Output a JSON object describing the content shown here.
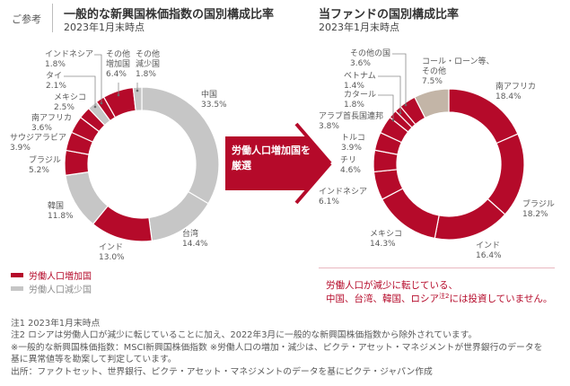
{
  "header": {
    "reference_label": "ご参考"
  },
  "arrow": {
    "line1": "労働人口増加国を",
    "line2": "厳選"
  },
  "legend": [
    {
      "label": "労働人口増加国",
      "color": "#b50a2a"
    },
    {
      "label": "労働人口減少国",
      "color": "#c6c6c6"
    }
  ],
  "message": {
    "line1": "労働人口が減少に転じている、",
    "line2_pre": "中国、台湾、韓国、ロシア",
    "line2_sup": "注2",
    "line2_post": "には投資していません。"
  },
  "notes": [
    "注1 2023年1月末時点",
    "注2 ロシアは労働人口が減少に転じていることに加え、2022年3月に一般的な新興国株価指数から除外されています。",
    "※一般的な新興国株価指数：MSCI新興国株価指数 ※労働人口の増加・減少は、ピクテ・アセット・マネジメントが世界銀行のデータを",
    "基に異常値等を勘案して判定しています。",
    "出所：ファクトセット、世界銀行、ピクテ・アセット・マネジメントのデータを基にピクテ・ジャパン作成"
  ],
  "chart_data": [
    {
      "type": "pie",
      "title": "一般的な新興国株価指数の国別構成比率",
      "subtitle": "2023年1月末時点",
      "unit": "%",
      "categories": [
        "中国",
        "台湾",
        "インド",
        "韓国",
        "ブラジル",
        "サウジアラビア",
        "南アフリカ",
        "メキシコ",
        "タイ",
        "インドネシア",
        "その他\n増加国",
        "その他\n減少国"
      ],
      "values": [
        33.5,
        14.4,
        13.0,
        11.8,
        5.2,
        3.9,
        3.6,
        2.5,
        2.1,
        1.8,
        6.4,
        1.8
      ],
      "value_labels": [
        "33.5%",
        "14.4%",
        "13.0%",
        "11.8%",
        "5.2%",
        "3.9%",
        "3.6%",
        "2.5%",
        "2.1%",
        "1.8%",
        "6.4%",
        "1.8%"
      ],
      "colors": [
        "#c6c6c6",
        "#c6c6c6",
        "#b50a2a",
        "#c6c6c6",
        "#b50a2a",
        "#b50a2a",
        "#b50a2a",
        "#b50a2a",
        "#c6c6c6",
        "#b50a2a",
        "#b50a2a",
        "#c6c6c6"
      ]
    },
    {
      "type": "pie",
      "title": "当ファンドの国別構成比率",
      "subtitle": "2023年1月末時点",
      "unit": "%",
      "categories": [
        "南アフリカ",
        "ブラジル",
        "インド",
        "メキシコ",
        "インドネシア",
        "チリ",
        "トルコ",
        "アラブ首長国連邦",
        "カタール",
        "ベトナム",
        "その他の国",
        "コール・ローン等、\nその他"
      ],
      "values": [
        18.4,
        18.2,
        16.4,
        14.3,
        6.1,
        4.6,
        3.9,
        3.8,
        1.8,
        1.4,
        3.6,
        7.5
      ],
      "value_labels": [
        "18.4%",
        "18.2%",
        "16.4%",
        "14.3%",
        "6.1%",
        "4.6%",
        "3.9%",
        "3.8%",
        "1.8%",
        "1.4%",
        "3.6%",
        "7.5%"
      ],
      "colors": [
        "#b50a2a",
        "#b50a2a",
        "#b50a2a",
        "#b50a2a",
        "#b50a2a",
        "#b50a2a",
        "#b50a2a",
        "#b50a2a",
        "#b50a2a",
        "#b50a2a",
        "#b50a2a",
        "#c3b5a7"
      ]
    }
  ]
}
